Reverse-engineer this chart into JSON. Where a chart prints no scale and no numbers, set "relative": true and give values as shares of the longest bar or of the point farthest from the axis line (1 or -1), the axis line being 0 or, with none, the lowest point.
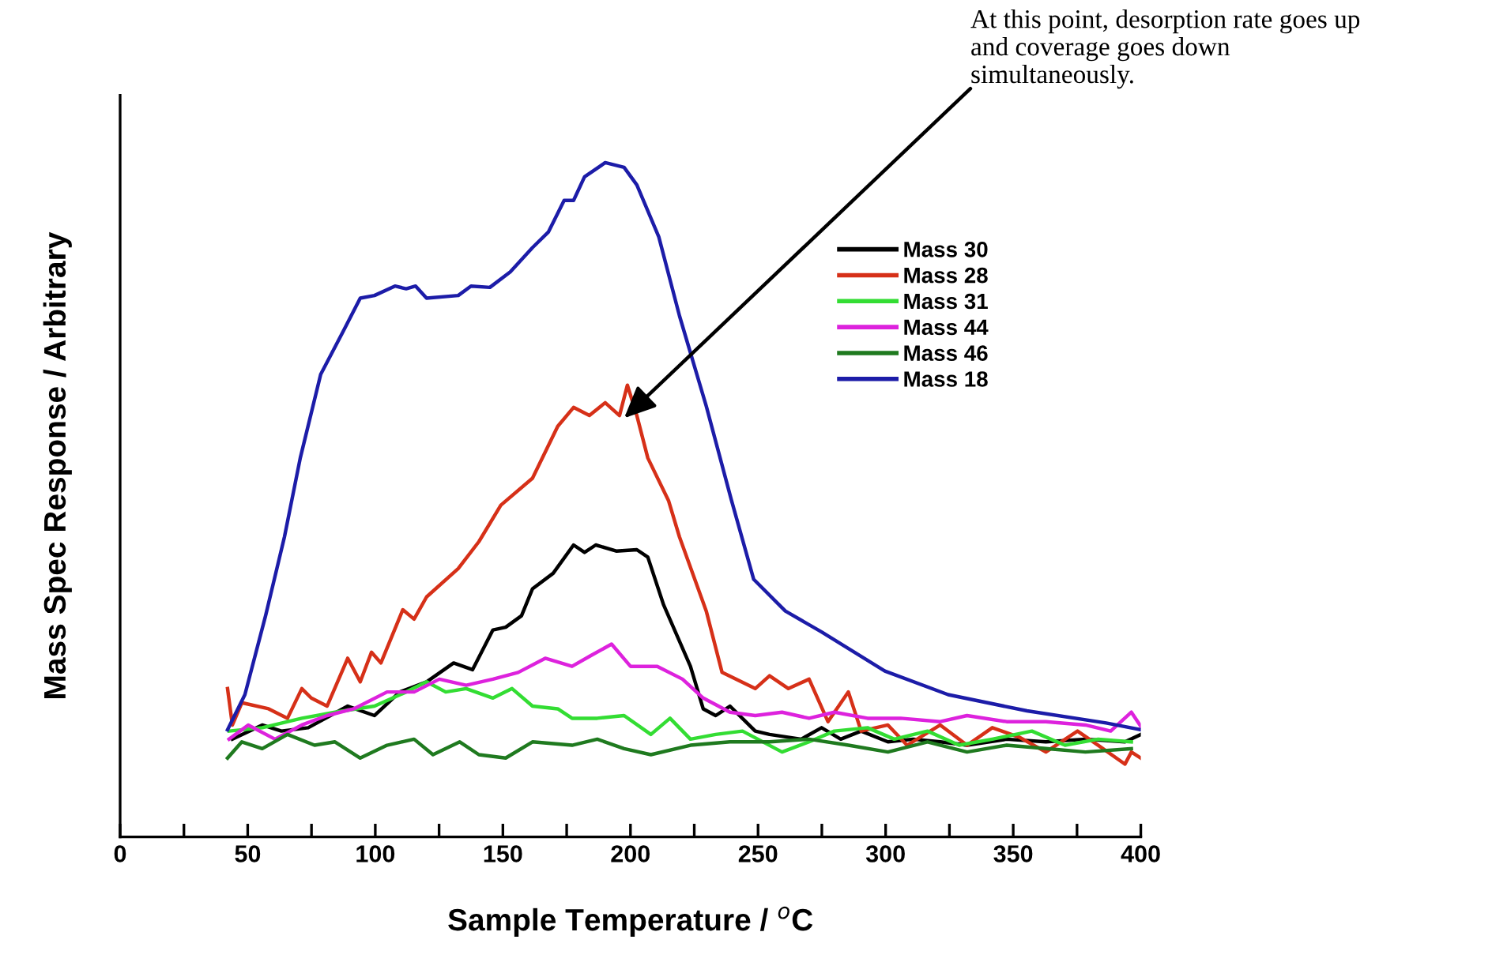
{
  "chart_data": {
    "type": "line",
    "relative": true,
    "xlabel": "Sample Temperature / $^{o}$C",
    "ylabel": "Mass Spec Response / Arbitrary",
    "xlim": [
      0,
      400
    ],
    "xticks": [
      0,
      {
        "value": 25,
        "label": null
      },
      50,
      {
        "value": 75,
        "label": null
      },
      100,
      {
        "value": 125,
        "label": null
      },
      150,
      {
        "value": 175,
        "label": null
      },
      200,
      {
        "value": 225,
        "label": null
      },
      250,
      {
        "value": 275,
        "label": null
      },
      300,
      {
        "value": 325,
        "label": null
      },
      350,
      {
        "value": 375,
        "label": null
      },
      400
    ],
    "tick_labels": "x",
    "legend": "top right",
    "grid": false,
    "marker": "none",
    "line_style": "solid",
    "annotations": [
      {
        "text": "At this point, desorption rate goes up\nand coverage goes down\nsimultaneously.",
        "x": 197.5,
        "y": 0.621
      }
    ],
    "series": [
      {
        "name": "Mass 30",
        "color": "#000000",
        "x": [
          44.0,
          55.7,
          63.2,
          73.7,
          89.2,
          99.7,
          109.6,
          120.1,
          130.7,
          138.1,
          146.1,
          151.1,
          157.3,
          161.6,
          169.7,
          177.7,
          182.0,
          186.4,
          194.4,
          202.5,
          206.8,
          213.0,
          223.5,
          228.5,
          233.4,
          239.0,
          248.9,
          254.5,
          266.9,
          274.9,
          282.4,
          290.4,
          300.9,
          310.8,
          321.4,
          331.9,
          347.4,
          362.8,
          378.3,
          393.8,
          400
        ],
        "values": [
          0.145,
          0.166,
          0.157,
          0.162,
          0.194,
          0.18,
          0.215,
          0.23,
          0.258,
          0.248,
          0.307,
          0.311,
          0.328,
          0.368,
          0.391,
          0.433,
          0.422,
          0.433,
          0.424,
          0.426,
          0.415,
          0.344,
          0.253,
          0.19,
          0.18,
          0.194,
          0.157,
          0.152,
          0.145,
          0.162,
          0.145,
          0.157,
          0.141,
          0.145,
          0.141,
          0.136,
          0.145,
          0.141,
          0.145,
          0.141,
          0.152
        ]
      },
      {
        "name": "Mass 28",
        "color": "#d63018",
        "x": [
          42.1,
          44.0,
          47.7,
          58.2,
          65.6,
          71.2,
          74.9,
          81.1,
          89.2,
          94.1,
          98.5,
          102.2,
          110.8,
          115.2,
          120.1,
          132.5,
          140.6,
          149.2,
          161.6,
          171.5,
          177.7,
          183.9,
          190.1,
          195.7,
          198.8,
          202.5,
          206.8,
          214.9,
          219.2,
          229.7,
          235.9,
          248.9,
          254.5,
          261.9,
          270.0,
          277.4,
          285.4,
          290.4,
          300.9,
          308.4,
          321.4,
          331.9,
          341.8,
          352.3,
          362.8,
          375.2,
          383.3,
          393.8,
          396.3,
          400
        ],
        "values": [
          0.22,
          0.166,
          0.199,
          0.19,
          0.176,
          0.22,
          0.206,
          0.194,
          0.265,
          0.23,
          0.274,
          0.258,
          0.337,
          0.323,
          0.356,
          0.398,
          0.438,
          0.492,
          0.532,
          0.609,
          0.637,
          0.625,
          0.644,
          0.625,
          0.67,
          0.625,
          0.562,
          0.499,
          0.445,
          0.335,
          0.244,
          0.22,
          0.239,
          0.22,
          0.234,
          0.171,
          0.215,
          0.157,
          0.166,
          0.136,
          0.166,
          0.136,
          0.162,
          0.148,
          0.126,
          0.157,
          0.136,
          0.108,
          0.126,
          0.117
        ]
      },
      {
        "name": "Mass 31",
        "color": "#33dd33",
        "x": [
          42.7,
          55.7,
          71.2,
          84.2,
          99.7,
          112.1,
          120.1,
          127.6,
          135.6,
          146.1,
          153.6,
          161.6,
          171.5,
          177.1,
          187.0,
          197.5,
          208.0,
          215.5,
          223.5,
          233.4,
          243.9,
          259.4,
          270.0,
          279.9,
          292.9,
          303.4,
          316.4,
          328.8,
          341.8,
          357.3,
          370.3,
          383.3,
          396.3
        ],
        "values": [
          0.157,
          0.162,
          0.176,
          0.185,
          0.194,
          0.215,
          0.23,
          0.215,
          0.22,
          0.206,
          0.22,
          0.194,
          0.19,
          0.176,
          0.176,
          0.18,
          0.152,
          0.176,
          0.145,
          0.152,
          0.157,
          0.126,
          0.141,
          0.157,
          0.162,
          0.145,
          0.157,
          0.136,
          0.145,
          0.157,
          0.136,
          0.145,
          0.141
        ]
      },
      {
        "name": "Mass 44",
        "color": "#dd22dd",
        "x": [
          42.7,
          50.2,
          60.7,
          71.2,
          81.1,
          91.6,
          104.6,
          115.2,
          125.1,
          135.6,
          146.1,
          156.0,
          166.6,
          177.1,
          184.5,
          192.6,
          200.0,
          210.5,
          220.4,
          228.5,
          239.0,
          248.9,
          259.4,
          270.0,
          279.9,
          292.9,
          305.9,
          321.4,
          331.9,
          347.4,
          362.8,
          378.3,
          388.2,
          396.3,
          400
        ],
        "values": [
          0.145,
          0.166,
          0.145,
          0.166,
          0.18,
          0.19,
          0.215,
          0.215,
          0.234,
          0.225,
          0.234,
          0.244,
          0.265,
          0.253,
          0.269,
          0.286,
          0.253,
          0.253,
          0.234,
          0.206,
          0.185,
          0.18,
          0.185,
          0.176,
          0.185,
          0.176,
          0.176,
          0.171,
          0.18,
          0.171,
          0.171,
          0.166,
          0.157,
          0.185,
          0.164
        ]
      },
      {
        "name": "Mass 46",
        "color": "#1f7a1f",
        "x": [
          42.1,
          47.7,
          55.7,
          65.6,
          76.2,
          84.2,
          94.1,
          104.6,
          115.2,
          122.6,
          133.1,
          140.6,
          151.1,
          161.6,
          177.1,
          187.0,
          197.5,
          208.0,
          223.5,
          239.0,
          254.5,
          270.0,
          285.4,
          300.9,
          316.4,
          331.9,
          347.4,
          362.8,
          378.3,
          396.3
        ],
        "values": [
          0.117,
          0.141,
          0.131,
          0.152,
          0.136,
          0.141,
          0.117,
          0.136,
          0.145,
          0.122,
          0.141,
          0.122,
          0.117,
          0.141,
          0.136,
          0.145,
          0.131,
          0.122,
          0.136,
          0.141,
          0.141,
          0.145,
          0.136,
          0.126,
          0.141,
          0.126,
          0.136,
          0.131,
          0.126,
          0.131
        ]
      },
      {
        "name": "Mass 18",
        "color": "#1c1ca8",
        "x": [
          42.1,
          48.9,
          57.0,
          64.4,
          70.6,
          78.6,
          87.3,
          94.1,
          99.7,
          107.7,
          112.1,
          115.8,
          120.1,
          132.5,
          137.5,
          144.9,
          152.9,
          161.6,
          167.8,
          174.0,
          177.7,
          182.0,
          190.1,
          197.5,
          202.5,
          211.1,
          219.2,
          229.7,
          239.6,
          248.3,
          260.7,
          274.9,
          299.7,
          324.5,
          355.4,
          386.4,
          400
        ],
        "values": [
          0.159,
          0.211,
          0.328,
          0.445,
          0.562,
          0.686,
          0.749,
          0.799,
          0.803,
          0.817,
          0.813,
          0.817,
          0.799,
          0.803,
          0.817,
          0.815,
          0.838,
          0.874,
          0.897,
          0.944,
          0.944,
          0.979,
          1,
          0.993,
          0.967,
          0.89,
          0.773,
          0.639,
          0.499,
          0.382,
          0.335,
          0.304,
          0.246,
          0.211,
          0.187,
          0.169,
          0.159
        ]
      }
    ]
  }
}
